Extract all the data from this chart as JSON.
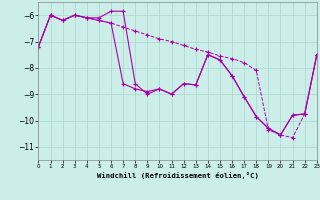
{
  "xlabel": "Windchill (Refroidissement éolien,°C)",
  "background_color": "#cceee8",
  "grid_color": "#aad4cc",
  "line_color": "#aa00aa",
  "xlim": [
    0,
    23
  ],
  "ylim": [
    -11.5,
    -5.5
  ],
  "yticks": [
    -11,
    -10,
    -9,
    -8,
    -7,
    -6
  ],
  "xticks": [
    0,
    1,
    2,
    3,
    4,
    5,
    6,
    7,
    8,
    9,
    10,
    11,
    12,
    13,
    14,
    15,
    16,
    17,
    18,
    19,
    20,
    21,
    22,
    23
  ],
  "line1_x": [
    0,
    1,
    2,
    3,
    4,
    5,
    6,
    7,
    8,
    9,
    10,
    11,
    12,
    13,
    14,
    15,
    16,
    17,
    18,
    19,
    20,
    21,
    22,
    23
  ],
  "line1_y": [
    -7.2,
    -6.0,
    -6.2,
    -6.0,
    -6.1,
    -6.1,
    -5.85,
    -5.85,
    -8.6,
    -9.0,
    -8.8,
    -9.0,
    -8.6,
    -8.65,
    -7.5,
    -7.7,
    -8.3,
    -9.1,
    -9.85,
    -10.3,
    -10.55,
    -9.8,
    -9.75,
    -7.5
  ],
  "line2_x": [
    0,
    1,
    2,
    3,
    4,
    5,
    6,
    7,
    8,
    9,
    10,
    11,
    12,
    13,
    14,
    15,
    16,
    17,
    18,
    19,
    20,
    21,
    22,
    23
  ],
  "line2_y": [
    -7.2,
    -6.0,
    -6.2,
    -6.0,
    -6.1,
    -6.2,
    -6.3,
    -8.6,
    -8.8,
    -8.9,
    -8.8,
    -9.0,
    -8.6,
    -8.65,
    -7.5,
    -7.7,
    -8.3,
    -9.1,
    -9.85,
    -10.3,
    -10.55,
    -9.8,
    -9.75,
    -7.5
  ],
  "line3_x": [
    0,
    1,
    2,
    3,
    4,
    5,
    6,
    7,
    8,
    9,
    10,
    11,
    12,
    13,
    14,
    15,
    16,
    17,
    18,
    19,
    20,
    21,
    22,
    23
  ],
  "line3_y": [
    -7.2,
    -6.0,
    -6.2,
    -6.0,
    -6.1,
    -6.2,
    -6.3,
    -6.45,
    -6.6,
    -6.75,
    -6.9,
    -7.0,
    -7.15,
    -7.3,
    -7.4,
    -7.55,
    -7.65,
    -7.8,
    -8.1,
    -10.35,
    -10.55,
    -10.65,
    -9.75,
    -7.5
  ]
}
